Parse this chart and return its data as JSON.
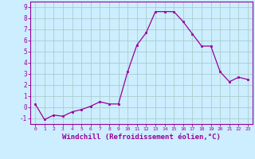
{
  "x": [
    0,
    1,
    2,
    3,
    4,
    5,
    6,
    7,
    8,
    9,
    10,
    11,
    12,
    13,
    14,
    15,
    16,
    17,
    18,
    19,
    20,
    21,
    22,
    23
  ],
  "y": [
    0.3,
    -1.1,
    -0.7,
    -0.8,
    -0.4,
    -0.2,
    0.1,
    0.5,
    0.3,
    0.3,
    3.2,
    5.6,
    6.7,
    8.6,
    8.6,
    8.6,
    7.7,
    6.6,
    5.5,
    5.5,
    3.2,
    2.3,
    2.7,
    2.5
  ],
  "line_color": "#990099",
  "marker": "s",
  "markersize": 2.0,
  "linewidth": 0.9,
  "xlabel": "Windchill (Refroidissement éolien,°C)",
  "xlabel_fontsize": 6.5,
  "xtick_labels": [
    "0",
    "1",
    "2",
    "3",
    "4",
    "5",
    "6",
    "7",
    "8",
    "9",
    "10",
    "11",
    "12",
    "13",
    "14",
    "15",
    "16",
    "17",
    "18",
    "19",
    "20",
    "21",
    "22",
    "23"
  ],
  "ytick_labels": [
    "-1",
    "0",
    "1",
    "2",
    "3",
    "4",
    "5",
    "6",
    "7",
    "8",
    "9"
  ],
  "ylim": [
    -1.5,
    9.5
  ],
  "xlim": [
    -0.5,
    23.5
  ],
  "bg_color": "#cceeff",
  "grid_color": "#aacccc",
  "tick_color": "#990099",
  "label_color": "#990099",
  "spine_color": "#990099"
}
